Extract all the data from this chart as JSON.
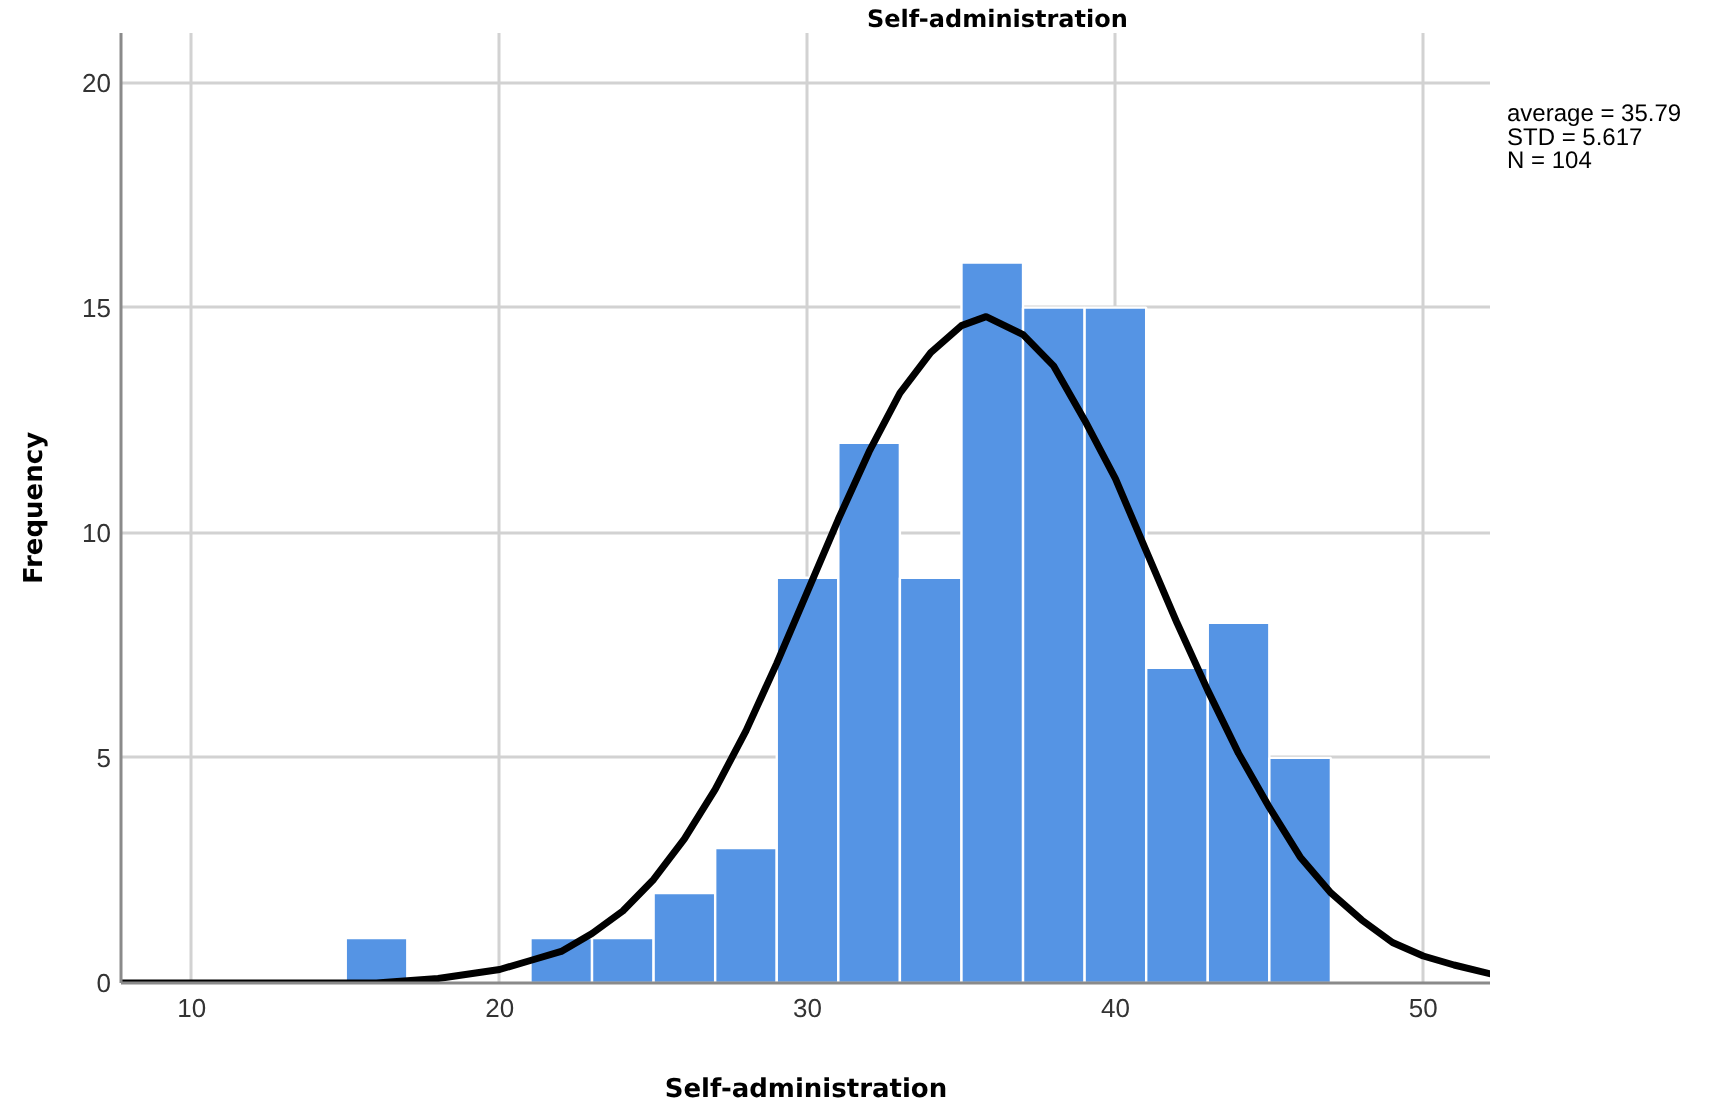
{
  "chart_data": {
    "type": "histogram",
    "title": "Self-administration",
    "xlabel": "Self-administration",
    "ylabel": "Frequency",
    "bins": [
      15,
      17,
      19,
      21,
      23,
      25,
      27,
      29,
      31,
      33,
      35,
      37,
      39,
      41,
      43,
      45,
      47
    ],
    "values": [
      1,
      0,
      0,
      1,
      1,
      2,
      3,
      9,
      12,
      9,
      16,
      15,
      15,
      7,
      8,
      5
    ],
    "color": "#5594e4",
    "series": [
      {
        "type": "line",
        "color": "#000000",
        "x": [
          7.7,
          12,
          14,
          16,
          18,
          20,
          21,
          22,
          23,
          24,
          25,
          26,
          27,
          28,
          29,
          30,
          31,
          32,
          33,
          34,
          35,
          35.8,
          37,
          38,
          39,
          40,
          41,
          42,
          43,
          44,
          45,
          46,
          47,
          48,
          49,
          50,
          51,
          52.2
        ],
        "values": [
          0.0,
          0.0,
          0.0,
          0.0,
          0.1,
          0.3,
          0.5,
          0.7,
          1.1,
          1.6,
          2.3,
          3.2,
          4.3,
          5.6,
          7.1,
          8.7,
          10.3,
          11.8,
          13.1,
          14.0,
          14.6,
          14.8,
          14.4,
          13.7,
          12.5,
          11.2,
          9.6,
          8.0,
          6.5,
          5.1,
          3.9,
          2.8,
          2.0,
          1.4,
          0.9,
          0.6,
          0.4,
          0.2
        ]
      }
    ],
    "xlim": [
      7.7,
      52.2
    ],
    "ylim": [
      0,
      21.1
    ],
    "xticks": [
      10,
      20,
      30,
      40,
      50
    ],
    "yticks": [
      0,
      5,
      10,
      15,
      20
    ],
    "grid": true,
    "annotations": [
      "average = 35.79",
      "STD = 5.617",
      "N = 104"
    ]
  }
}
